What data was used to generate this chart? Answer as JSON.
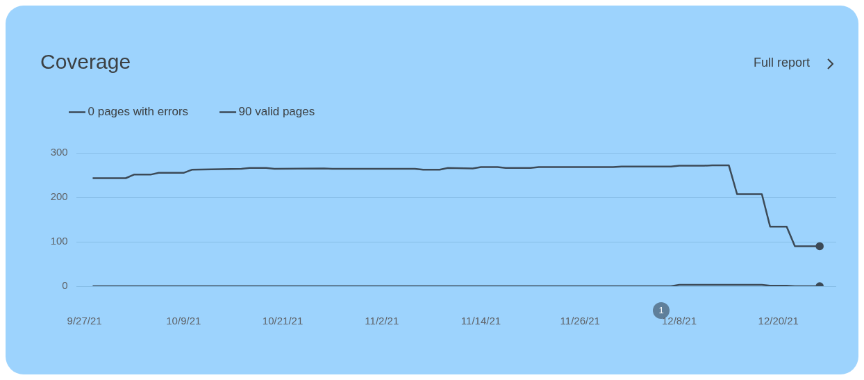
{
  "chart_data": {
    "type": "line",
    "title": "Coverage",
    "annotations": [
      "Full report",
      "1"
    ],
    "legend": "top left",
    "grid": "y",
    "marker": "none",
    "line_style": "solid",
    "xlim": [
      "--09-26",
      "--12-27"
    ],
    "xticks": [
      {
        "value": "--09-27",
        "label": "9/27/21"
      },
      {
        "value": "--10-09",
        "label": "10/9/21"
      },
      {
        "value": "--10-21",
        "label": "10/21/21"
      },
      {
        "value": "--11-02",
        "label": "11/2/21"
      },
      {
        "value": "--11-14",
        "label": "11/14/21"
      },
      {
        "value": "--11-26",
        "label": "11/26/21"
      },
      {
        "value": "--12-08",
        "label": "12/8/21"
      },
      {
        "value": "--12-20",
        "label": "12/20/21"
      }
    ],
    "ylim": [
      0,
      300
    ],
    "yticks": [
      0,
      100,
      200,
      300
    ],
    "series": [
      {
        "name": "0 pages with errors",
        "color": "#3c4a57",
        "x": [
          "--09-28",
          "--12-07",
          "--12-08",
          "--12-18",
          "--12-19",
          "--12-21",
          "--12-22",
          "--12-25"
        ],
        "values": [
          0,
          0,
          3,
          3,
          1,
          1,
          0,
          0
        ]
      },
      {
        "name": "90 valid pages",
        "color": "#3c4a57",
        "x": [
          "--09-28",
          "--10-02",
          "--10-03",
          "--10-05",
          "--10-06",
          "--10-09",
          "--10-10",
          "--10-16",
          "--10-17",
          "--10-19",
          "--10-20",
          "--10-26",
          "--10-27",
          "--11-06",
          "--11-07",
          "--11-09",
          "--11-10",
          "--11-13",
          "--11-14",
          "--11-16",
          "--11-17",
          "--11-20",
          "--11-21",
          "--11-30",
          "--12-01",
          "--12-07",
          "--12-08",
          "--12-11",
          "--12-12",
          "--12-14",
          "--12-15",
          "--12-18",
          "--12-19",
          "--12-21",
          "--12-22",
          "--12-25"
        ],
        "values": [
          243,
          243,
          251,
          251,
          255,
          255,
          262,
          264,
          266,
          266,
          264,
          265,
          264,
          264,
          262,
          262,
          266,
          265,
          268,
          268,
          266,
          266,
          268,
          268,
          269,
          269,
          271,
          271,
          272,
          272,
          207,
          207,
          134,
          134,
          90,
          90
        ]
      }
    ]
  }
}
